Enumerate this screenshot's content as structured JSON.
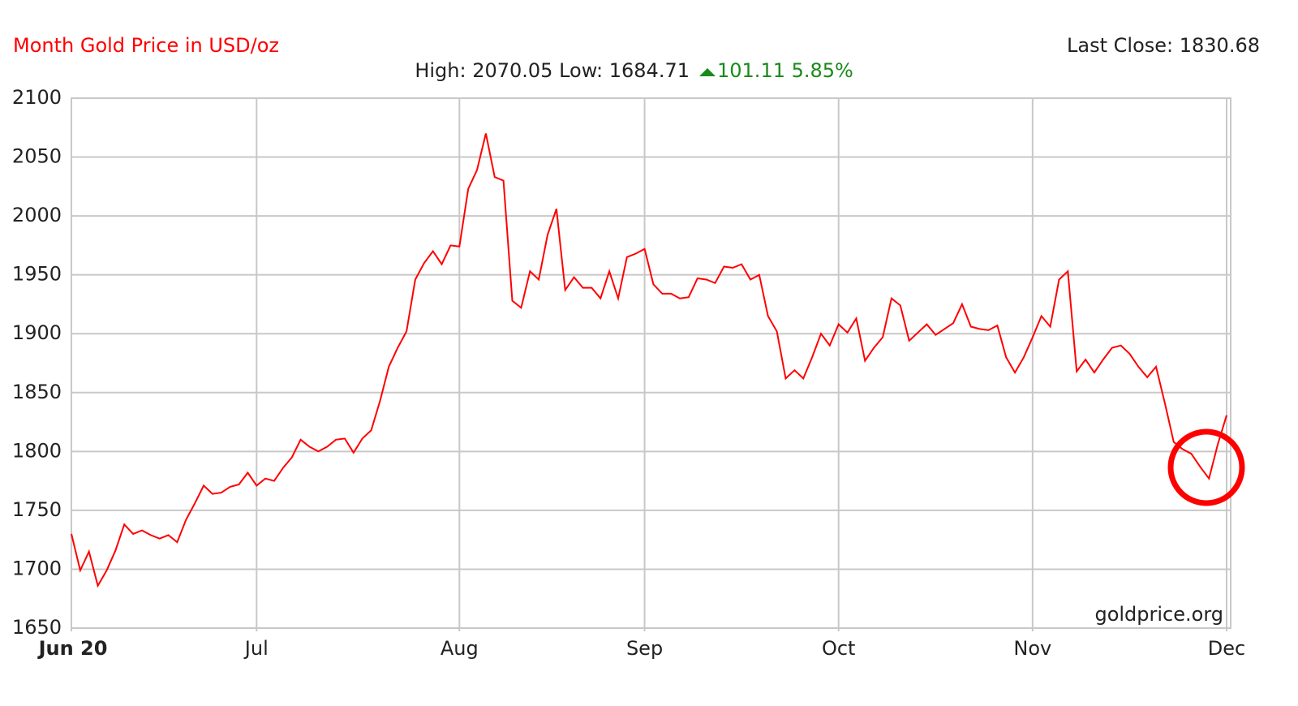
{
  "chart_data": {
    "type": "line",
    "title": "Month Gold Price in USD/oz",
    "last_close": "Last Close: 1830.68",
    "high_low": "High: 2070.05 Low: 1684.71",
    "change": "101.11 5.85%",
    "watermark": "goldprice.org",
    "color": "#ff0000",
    "grid": true,
    "ylim": [
      1650,
      2100
    ],
    "yticks": [
      1650,
      1700,
      1750,
      1800,
      1850,
      1900,
      1950,
      2000,
      2050,
      2100
    ],
    "categories": [
      "Jun 20",
      null,
      null,
      null,
      null,
      null,
      null,
      null,
      null,
      null,
      null,
      null,
      null,
      null,
      null,
      null,
      null,
      null,
      null,
      null,
      null,
      "Jul",
      null,
      null,
      null,
      null,
      null,
      null,
      null,
      null,
      null,
      null,
      null,
      null,
      null,
      null,
      null,
      null,
      null,
      null,
      null,
      null,
      null,
      null,
      "Aug",
      null,
      null,
      null,
      null,
      null,
      null,
      null,
      null,
      null,
      null,
      null,
      null,
      null,
      null,
      null,
      null,
      null,
      null,
      null,
      null,
      "Sep",
      null,
      null,
      null,
      null,
      null,
      null,
      null,
      null,
      null,
      null,
      null,
      null,
      null,
      null,
      null,
      null,
      null,
      null,
      null,
      null,
      null,
      "Oct",
      null,
      null,
      null,
      null,
      null,
      null,
      null,
      null,
      null,
      null,
      null,
      null,
      null,
      null,
      null,
      null,
      null,
      null,
      null,
      null,
      null,
      "Nov",
      null,
      null,
      null,
      null,
      null,
      null,
      null,
      null,
      null,
      null,
      null,
      null,
      null,
      null,
      null,
      null,
      null,
      null,
      null,
      null,
      null,
      "Dec"
    ],
    "values": [
      1730,
      1699,
      1715,
      1686,
      1699,
      1716,
      1738,
      1730,
      1733,
      1729,
      1726,
      1729,
      1723,
      1742,
      1756,
      1771,
      1764,
      1765,
      1770,
      1772,
      1782,
      1771,
      1777,
      1775,
      1786,
      1795,
      1810,
      1804,
      1800,
      1804,
      1810,
      1811,
      1799,
      1811,
      1818,
      1843,
      1872,
      1888,
      1902,
      1946,
      1960,
      1970,
      1959,
      1975,
      1974,
      2023,
      2039,
      2070,
      2033,
      2030,
      1928,
      1922,
      1953,
      1946,
      1984,
      2006,
      1937,
      1948,
      1939,
      1939,
      1930,
      1953,
      1930,
      1965,
      1968,
      1972,
      1942,
      1934,
      1934,
      1930,
      1931,
      1947,
      1946,
      1943,
      1957,
      1956,
      1959,
      1946,
      1950,
      1915,
      1902,
      1862,
      1869,
      1862,
      1880,
      1900,
      1890,
      1908,
      1901,
      1913,
      1877,
      1888,
      1897,
      1930,
      1924,
      1894,
      1901,
      1908,
      1899,
      1904,
      1909,
      1925,
      1906,
      1904,
      1903,
      1907,
      1880,
      1867,
      1880,
      1897,
      1915,
      1906,
      1946,
      1953,
      1868,
      1878,
      1867,
      1878,
      1888,
      1890,
      1883,
      1872,
      1863,
      1872,
      1841,
      1808,
      1802,
      1798,
      1787,
      1777,
      1806,
      1830.68
    ]
  }
}
